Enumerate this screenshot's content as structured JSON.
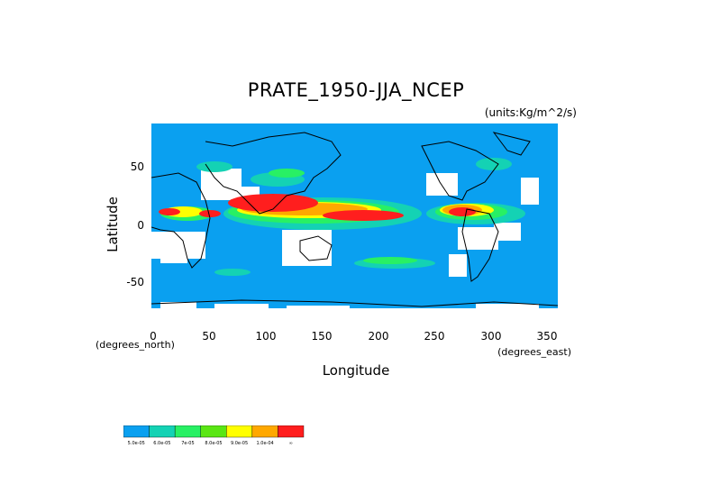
{
  "title": "PRATE_1950-JJA_NCEP",
  "units": "(units:Kg/m^2/s)",
  "axes": {
    "ylabel": "Latitude",
    "xlabel": "Longitude",
    "ynote": "(degrees_north)",
    "xnote": "(degrees_east)",
    "yticks": [
      "50",
      "0",
      "-50"
    ],
    "xticks": [
      "0",
      "50",
      "100",
      "150",
      "200",
      "250",
      "300",
      "350"
    ]
  },
  "map": {
    "projection": "equirectangular",
    "lon_range": [
      0,
      360
    ],
    "lat_range": [
      -90,
      90
    ],
    "land_outline": "coastlines"
  },
  "legend": {
    "colors": [
      "#0aa0f0",
      "#14d2b4",
      "#28f064",
      "#5ae614",
      "#ffff00",
      "#ffa800",
      "#ff1e1e"
    ],
    "labels": [
      "5.0e-05",
      "6.0e-05",
      "7e-05",
      "8.0e-05",
      "9.0e-05",
      "1.0e-04",
      "∞"
    ],
    "no_data_color": "#ffffff"
  }
}
